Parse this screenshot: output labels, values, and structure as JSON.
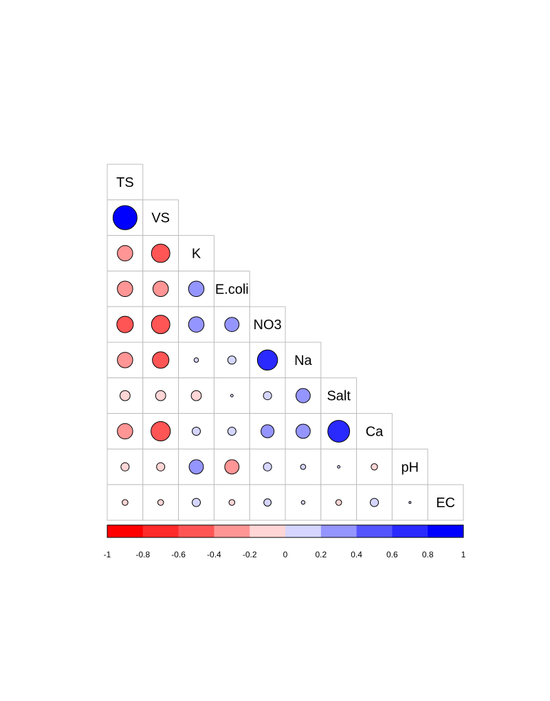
{
  "chart_data": {
    "type": "heatmap",
    "style": "correlation-circles-lower-triangle",
    "variables": [
      "TS",
      "VS",
      "K",
      "E.coli",
      "NO3",
      "Na",
      "Salt",
      "Ca",
      "pH",
      "EC"
    ],
    "correlations": [
      [
        1.0
      ],
      [
        0.85,
        1.0
      ],
      [
        -0.35,
        -0.5,
        1.0
      ],
      [
        -0.35,
        -0.35,
        0.35,
        1.0
      ],
      [
        -0.4,
        -0.5,
        0.35,
        0.3,
        1.0
      ],
      [
        -0.35,
        -0.4,
        0.03,
        0.1,
        0.6,
        1.0
      ],
      [
        -0.15,
        -0.15,
        -0.15,
        0.01,
        0.1,
        0.3,
        1.0
      ],
      [
        -0.35,
        -0.55,
        0.1,
        0.1,
        0.25,
        0.3,
        0.7,
        1.0
      ],
      [
        -0.1,
        -0.1,
        0.3,
        -0.3,
        0.1,
        0.04,
        0.01,
        -0.06,
        1.0
      ],
      [
        -0.05,
        -0.05,
        0.1,
        -0.05,
        0.08,
        0.02,
        -0.05,
        0.1,
        0.005,
        1.0
      ]
    ],
    "colorbar": {
      "range": [
        -1,
        1
      ],
      "tick_labels": [
        "-1",
        "-0.8",
        "-0.6",
        "-0.4",
        "-0.2",
        "0",
        "0.2",
        "0.4",
        "0.6",
        "0.8",
        "1"
      ],
      "bin_colors": [
        "#ff0000",
        "#ff2a2a",
        "#ff5555",
        "#ff9595",
        "#ffd5d5",
        "#d5d5ff",
        "#9595ff",
        "#5555ff",
        "#2a2aff",
        "#0000ff"
      ]
    },
    "title": "",
    "xlabel": "",
    "ylabel": ""
  }
}
